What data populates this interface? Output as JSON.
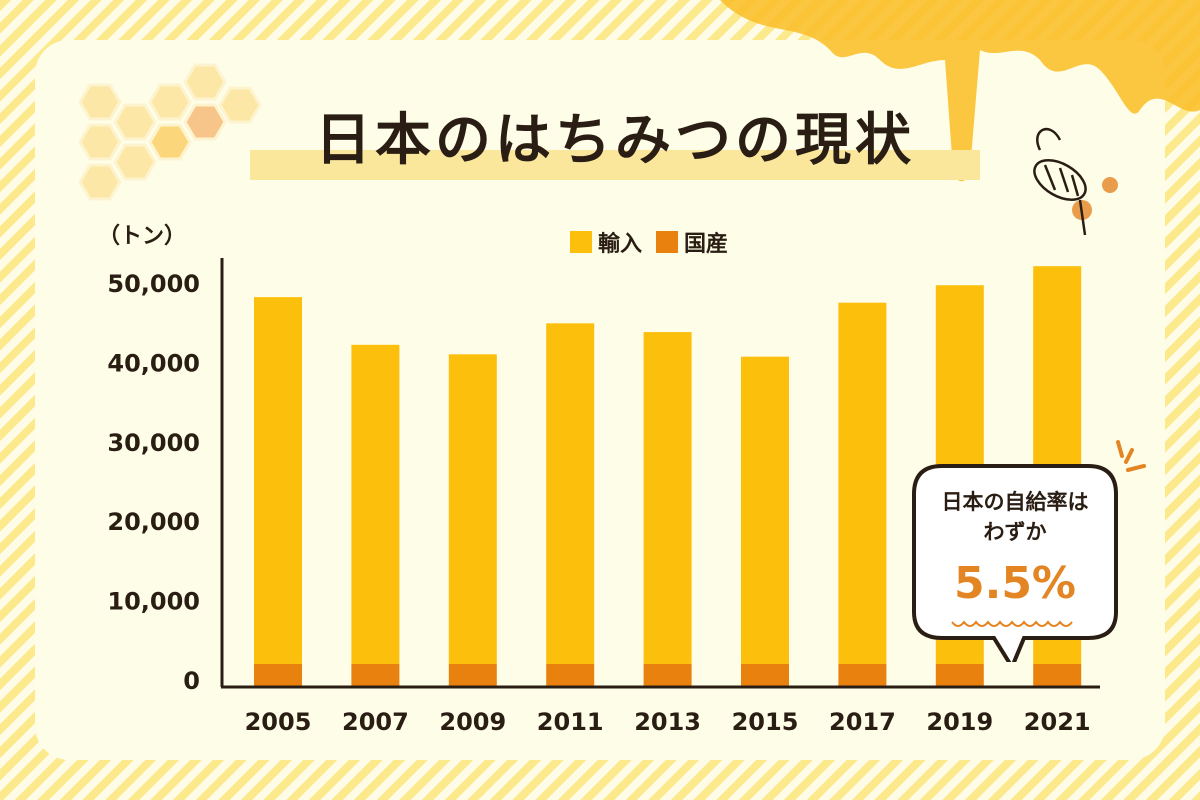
{
  "title": "日本のはちみつの現状",
  "chart_data": {
    "type": "bar",
    "stacked": true,
    "title": "日本のはちみつの現状",
    "ylabel": "（トン）",
    "categories": [
      "2005",
      "2007",
      "2009",
      "2011",
      "2013",
      "2015",
      "2017",
      "2019",
      "2021"
    ],
    "series": [
      {
        "name": "国産",
        "color": "#e9810f",
        "values": [
          2900,
          2900,
          2900,
          2900,
          2900,
          2900,
          2900,
          2900,
          2900
        ]
      },
      {
        "name": "輸入",
        "color": "#fcbf0c",
        "values": [
          46200,
          40200,
          39000,
          42900,
          41800,
          38700,
          45500,
          47700,
          50100
        ]
      }
    ],
    "yticks": [
      "0",
      "10,000",
      "20,000",
      "30,000",
      "40,000",
      "50,000"
    ],
    "ylim": [
      0,
      55000
    ],
    "legend": "top-center",
    "grid": false
  },
  "legend": {
    "import": "輸入",
    "domestic": "国産"
  },
  "callout": {
    "line1": "日本の自給率は",
    "line2": "わずか",
    "value": "5.5%"
  }
}
